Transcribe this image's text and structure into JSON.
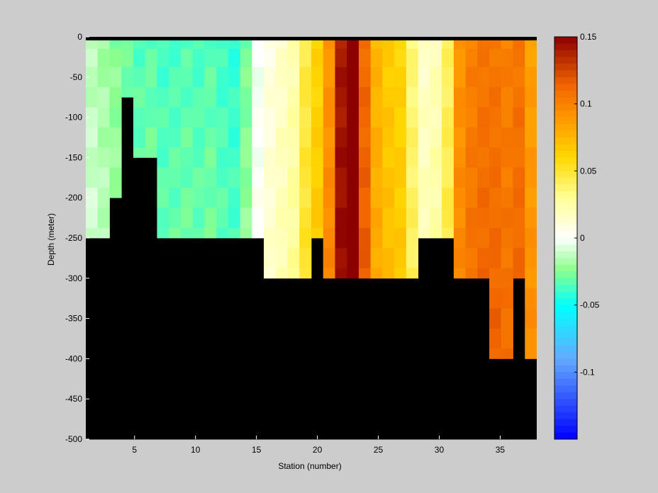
{
  "chart_data": {
    "type": "heatmap",
    "title": "",
    "xlabel": "Station (number)",
    "ylabel": "Depth (meter)",
    "xlim": [
      1,
      38
    ],
    "ylim": [
      -500,
      0
    ],
    "xticks": [
      "5",
      "10",
      "15",
      "20",
      "25",
      "30",
      "35"
    ],
    "yticks": [
      "0",
      "-50",
      "-100",
      "-150",
      "-200",
      "-250",
      "-300",
      "-350",
      "-400",
      "-450",
      "-500"
    ],
    "colorbar": {
      "range": [
        -0.15,
        0.15
      ],
      "ticks": [
        "0.15",
        "0.1",
        "0.05",
        "0",
        "-0.05",
        "-0.1"
      ],
      "colormap": "blue-cyan-green-white-yellow-orange-darkred"
    },
    "depth_bins": [
      -5,
      -25,
      -50,
      -75,
      -100,
      -125,
      -150,
      -175,
      -200,
      -225,
      -250,
      -275,
      -300,
      -325,
      -350,
      -375,
      -400
    ],
    "stations": [
      1,
      2,
      3,
      4,
      5,
      6,
      7,
      8,
      9,
      10,
      11,
      12,
      13,
      14,
      15,
      16,
      17,
      18,
      19,
      20,
      21,
      22,
      23,
      24,
      25,
      26,
      27,
      28,
      29,
      30,
      31,
      32,
      33,
      34,
      35,
      36,
      37,
      38
    ],
    "profile_values": [
      -0.015,
      -0.02,
      -0.025,
      -0.03,
      -0.035,
      -0.033,
      -0.038,
      -0.037,
      -0.035,
      -0.037,
      -0.034,
      -0.039,
      -0.042,
      -0.028,
      -0.003,
      0.008,
      0.015,
      0.022,
      0.045,
      0.06,
      0.09,
      0.14,
      0.16,
      0.11,
      0.075,
      0.065,
      0.06,
      0.035,
      0.015,
      0.02,
      0.04,
      0.09,
      0.1,
      0.105,
      0.105,
      0.1,
      0.105,
      0.085
    ],
    "bottom_depths": [
      -250,
      -250,
      -200,
      -75,
      -150,
      -150,
      -250,
      -250,
      -250,
      -250,
      -250,
      -250,
      -250,
      -250,
      -250,
      -300,
      -300,
      -300,
      -300,
      -250,
      -300,
      -300,
      -300,
      -300,
      -300,
      -300,
      -300,
      -300,
      -250,
      -250,
      -250,
      -300,
      -300,
      -300,
      -400,
      -400,
      -300,
      -400
    ],
    "land_color": "#000000",
    "top_band": "0 m bin, all stations: black"
  }
}
